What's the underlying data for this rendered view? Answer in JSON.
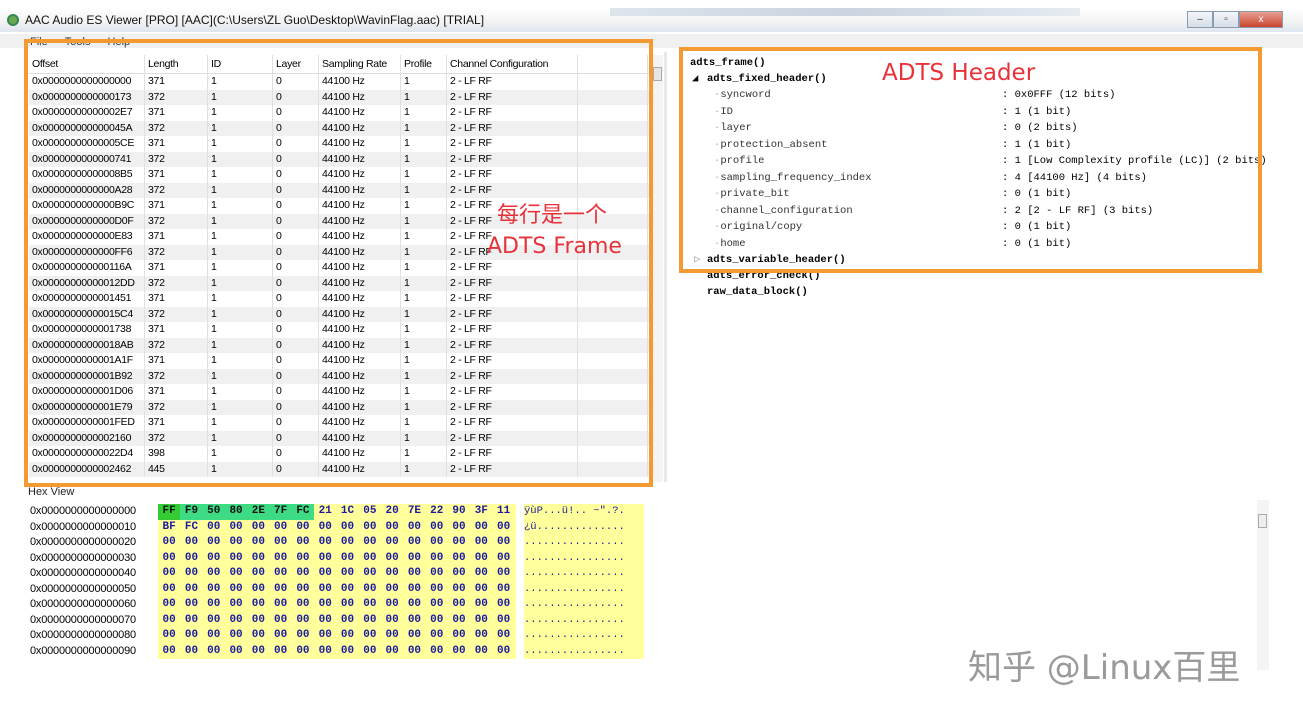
{
  "window": {
    "title": "AAC Audio ES Viewer [PRO] [AAC](C:\\Users\\ZL Guo\\Desktop\\WavinFlag.aac) [TRIAL]",
    "controls": [
      "–",
      "▫",
      "x"
    ]
  },
  "menu": [
    "File",
    "Tools",
    "Help"
  ],
  "frames_table": {
    "columns": [
      "Offset",
      "Length",
      "ID",
      "Layer",
      "Sampling Rate",
      "Profile",
      "Channel Configuration"
    ],
    "rows": [
      [
        "0x0000000000000000",
        "371",
        "1",
        "0",
        "44100 Hz",
        "1",
        "2 - LF RF"
      ],
      [
        "0x0000000000000173",
        "372",
        "1",
        "0",
        "44100 Hz",
        "1",
        "2 - LF RF"
      ],
      [
        "0x00000000000002E7",
        "371",
        "1",
        "0",
        "44100 Hz",
        "1",
        "2 - LF RF"
      ],
      [
        "0x000000000000045A",
        "372",
        "1",
        "0",
        "44100 Hz",
        "1",
        "2 - LF RF"
      ],
      [
        "0x00000000000005CE",
        "371",
        "1",
        "0",
        "44100 Hz",
        "1",
        "2 - LF RF"
      ],
      [
        "0x0000000000000741",
        "372",
        "1",
        "0",
        "44100 Hz",
        "1",
        "2 - LF RF"
      ],
      [
        "0x00000000000008B5",
        "371",
        "1",
        "0",
        "44100 Hz",
        "1",
        "2 - LF RF"
      ],
      [
        "0x0000000000000A28",
        "372",
        "1",
        "0",
        "44100 Hz",
        "1",
        "2 - LF RF"
      ],
      [
        "0x0000000000000B9C",
        "371",
        "1",
        "0",
        "44100 Hz",
        "1",
        "2 - LF RF"
      ],
      [
        "0x0000000000000D0F",
        "372",
        "1",
        "0",
        "44100 Hz",
        "1",
        "2 - LF RF"
      ],
      [
        "0x0000000000000E83",
        "371",
        "1",
        "0",
        "44100 Hz",
        "1",
        "2 - LF RF"
      ],
      [
        "0x0000000000000FF6",
        "372",
        "1",
        "0",
        "44100 Hz",
        "1",
        "2 - LF RF"
      ],
      [
        "0x000000000000116A",
        "371",
        "1",
        "0",
        "44100 Hz",
        "1",
        "2 - LF RF"
      ],
      [
        "0x00000000000012DD",
        "372",
        "1",
        "0",
        "44100 Hz",
        "1",
        "2 - LF RF"
      ],
      [
        "0x0000000000001451",
        "371",
        "1",
        "0",
        "44100 Hz",
        "1",
        "2 - LF RF"
      ],
      [
        "0x00000000000015C4",
        "372",
        "1",
        "0",
        "44100 Hz",
        "1",
        "2 - LF RF"
      ],
      [
        "0x0000000000001738",
        "371",
        "1",
        "0",
        "44100 Hz",
        "1",
        "2 - LF RF"
      ],
      [
        "0x00000000000018AB",
        "372",
        "1",
        "0",
        "44100 Hz",
        "1",
        "2 - LF RF"
      ],
      [
        "0x0000000000001A1F",
        "371",
        "1",
        "0",
        "44100 Hz",
        "1",
        "2 - LF RF"
      ],
      [
        "0x0000000000001B92",
        "372",
        "1",
        "0",
        "44100 Hz",
        "1",
        "2 - LF RF"
      ],
      [
        "0x0000000000001D06",
        "371",
        "1",
        "0",
        "44100 Hz",
        "1",
        "2 - LF RF"
      ],
      [
        "0x0000000000001E79",
        "372",
        "1",
        "0",
        "44100 Hz",
        "1",
        "2 - LF RF"
      ],
      [
        "0x0000000000001FED",
        "371",
        "1",
        "0",
        "44100 Hz",
        "1",
        "2 - LF RF"
      ],
      [
        "0x0000000000002160",
        "372",
        "1",
        "0",
        "44100 Hz",
        "1",
        "2 - LF RF"
      ],
      [
        "0x00000000000022D4",
        "398",
        "1",
        "0",
        "44100 Hz",
        "1",
        "2 - LF RF"
      ],
      [
        "0x0000000000002462",
        "445",
        "1",
        "0",
        "44100 Hz",
        "1",
        "2 - LF RF"
      ]
    ]
  },
  "tree": {
    "root": "adts_frame()",
    "fixed_header": "adts_fixed_header()",
    "fields": [
      {
        "name": "syncword",
        "value": ": 0x0FFF (12 bits)"
      },
      {
        "name": "ID",
        "value": ": 1 (1 bit)"
      },
      {
        "name": "layer",
        "value": ": 0 (2 bits)"
      },
      {
        "name": "protection_absent",
        "value": ": 1 (1 bit)"
      },
      {
        "name": "profile",
        "value": ": 1 [Low Complexity profile (LC)] (2 bits)"
      },
      {
        "name": "sampling_frequency_index",
        "value": ": 4 [44100 Hz] (4 bits)"
      },
      {
        "name": "private_bit",
        "value": ": 0 (1 bit)"
      },
      {
        "name": "channel_configuration",
        "value": ": 2 [2 - LF RF] (3 bits)"
      },
      {
        "name": "original/copy",
        "value": ": 0 (1 bit)"
      },
      {
        "name": "home",
        "value": ": 0 (1 bit)"
      }
    ],
    "variable_header": "adts_variable_header()",
    "error_check": "adts_error_check()",
    "raw_data": "raw_data_block()"
  },
  "hex_view": {
    "label": "Hex View",
    "rows": [
      {
        "addr": "0x0000000000000000",
        "bytes": [
          "FF",
          "F9",
          "50",
          "80",
          "2E",
          "7F",
          "FC",
          "21",
          "1C",
          "05",
          "20",
          "7E",
          "22",
          "90",
          "3F",
          "11"
        ],
        "ascii": "ÿùP...ü!.. ~\".?."
      },
      {
        "addr": "0x0000000000000010",
        "bytes": [
          "BF",
          "FC",
          "00",
          "00",
          "00",
          "00",
          "00",
          "00",
          "00",
          "00",
          "00",
          "00",
          "00",
          "00",
          "00",
          "00"
        ],
        "ascii": "¿ü.............."
      },
      {
        "addr": "0x0000000000000020",
        "bytes": [
          "00",
          "00",
          "00",
          "00",
          "00",
          "00",
          "00",
          "00",
          "00",
          "00",
          "00",
          "00",
          "00",
          "00",
          "00",
          "00"
        ],
        "ascii": "................"
      },
      {
        "addr": "0x0000000000000030",
        "bytes": [
          "00",
          "00",
          "00",
          "00",
          "00",
          "00",
          "00",
          "00",
          "00",
          "00",
          "00",
          "00",
          "00",
          "00",
          "00",
          "00"
        ],
        "ascii": "................"
      },
      {
        "addr": "0x0000000000000040",
        "bytes": [
          "00",
          "00",
          "00",
          "00",
          "00",
          "00",
          "00",
          "00",
          "00",
          "00",
          "00",
          "00",
          "00",
          "00",
          "00",
          "00"
        ],
        "ascii": "................"
      },
      {
        "addr": "0x0000000000000050",
        "bytes": [
          "00",
          "00",
          "00",
          "00",
          "00",
          "00",
          "00",
          "00",
          "00",
          "00",
          "00",
          "00",
          "00",
          "00",
          "00",
          "00"
        ],
        "ascii": "................"
      },
      {
        "addr": "0x0000000000000060",
        "bytes": [
          "00",
          "00",
          "00",
          "00",
          "00",
          "00",
          "00",
          "00",
          "00",
          "00",
          "00",
          "00",
          "00",
          "00",
          "00",
          "00"
        ],
        "ascii": "................"
      },
      {
        "addr": "0x0000000000000070",
        "bytes": [
          "00",
          "00",
          "00",
          "00",
          "00",
          "00",
          "00",
          "00",
          "00",
          "00",
          "00",
          "00",
          "00",
          "00",
          "00",
          "00"
        ],
        "ascii": "................"
      },
      {
        "addr": "0x0000000000000080",
        "bytes": [
          "00",
          "00",
          "00",
          "00",
          "00",
          "00",
          "00",
          "00",
          "00",
          "00",
          "00",
          "00",
          "00",
          "00",
          "00",
          "00"
        ],
        "ascii": "................"
      },
      {
        "addr": "0x0000000000000090",
        "bytes": [
          "00",
          "00",
          "00",
          "00",
          "00",
          "00",
          "00",
          "00",
          "00",
          "00",
          "00",
          "00",
          "00",
          "00",
          "00",
          "00"
        ],
        "ascii": "................"
      }
    ],
    "highlight_count": 7
  },
  "annotations": {
    "frame_line1": "每行是一个",
    "frame_line2": "ADTS Frame",
    "header": "ADTS Header"
  },
  "colors": {
    "annotation_box": "#f39a32",
    "annotation_text": "#e8323a",
    "hex_bg": "#ffff9c",
    "hex_highlight": "#3ddc84"
  },
  "watermark": "知乎 @Linux百里"
}
